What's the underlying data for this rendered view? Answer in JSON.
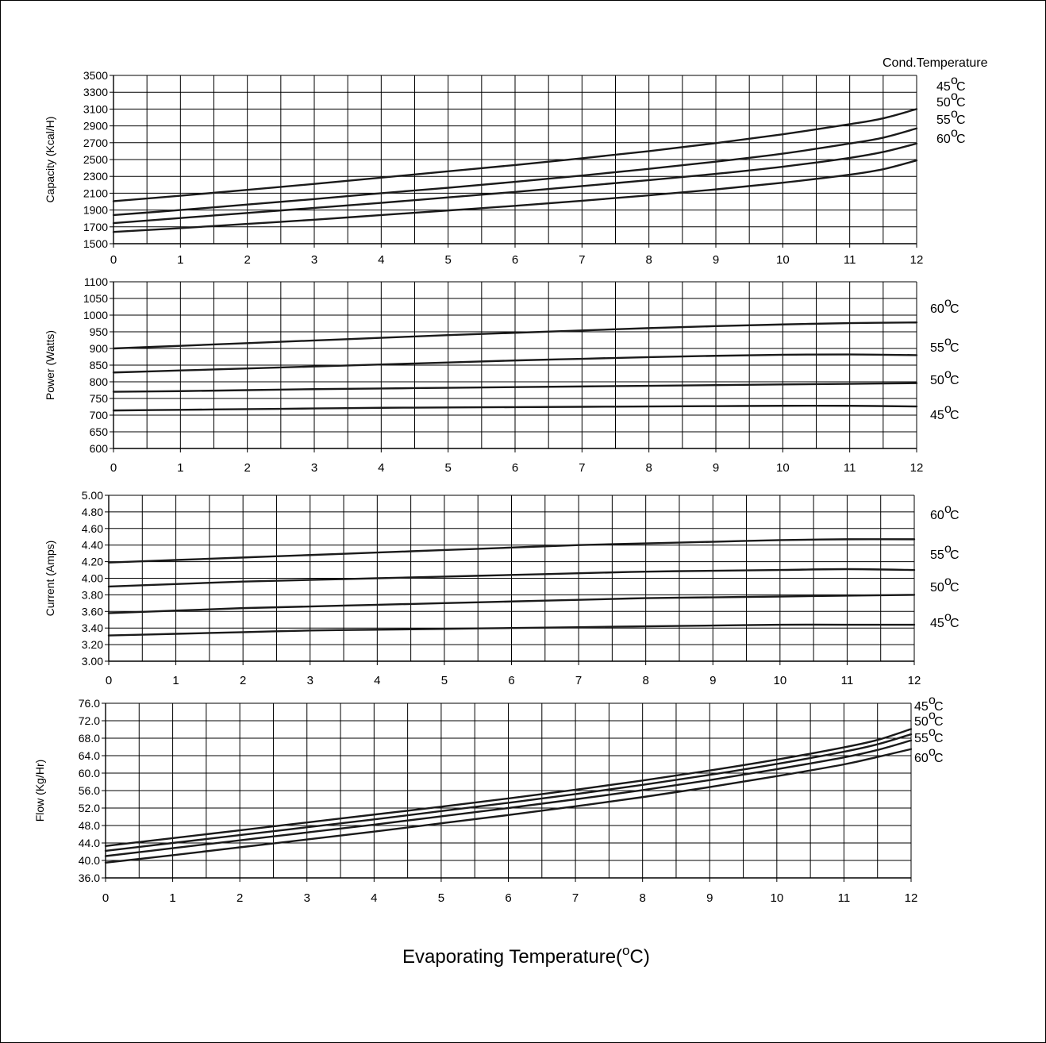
{
  "xlabel_prefix": "Evaporating Temperature(",
  "xlabel_degree": "o",
  "xlabel_suffix": "C)",
  "legend_title": "Cond.Temperature",
  "degree_mark": "o",
  "chart_data": [
    {
      "type": "line",
      "ylabel": "Capacity (Kcal/H)",
      "xlim": [
        0,
        12
      ],
      "ylim": [
        1500,
        3500
      ],
      "x_ticks": [
        "0",
        "1",
        "2",
        "3",
        "4",
        "5",
        "6",
        "7",
        "8",
        "9",
        "10",
        "11",
        "12"
      ],
      "y_ticks": [
        "1500",
        "1700",
        "1900",
        "2100",
        "2300",
        "2500",
        "2700",
        "2900",
        "3100",
        "3300",
        "3500"
      ],
      "grid": true,
      "x": [
        0,
        1,
        2,
        3,
        4,
        5,
        6,
        7,
        8,
        9,
        10,
        11,
        11.5,
        12
      ],
      "series": [
        {
          "name": "45",
          "values": [
            2005,
            2070,
            2140,
            2210,
            2285,
            2360,
            2435,
            2515,
            2600,
            2695,
            2800,
            2920,
            2990,
            3100
          ]
        },
        {
          "name": "50",
          "values": [
            1840,
            1900,
            1965,
            2030,
            2100,
            2165,
            2235,
            2310,
            2390,
            2475,
            2570,
            2690,
            2760,
            2870
          ]
        },
        {
          "name": "55",
          "values": [
            1745,
            1805,
            1865,
            1925,
            1985,
            2050,
            2115,
            2185,
            2255,
            2330,
            2415,
            2520,
            2590,
            2690
          ]
        },
        {
          "name": "60",
          "values": [
            1640,
            1685,
            1735,
            1785,
            1840,
            1895,
            1950,
            2010,
            2075,
            2145,
            2225,
            2320,
            2385,
            2490
          ]
        }
      ],
      "legend": [
        "45",
        "50",
        "55",
        "60"
      ],
      "legend_unit": "C"
    },
    {
      "type": "line",
      "ylabel": "Power (Watts)",
      "xlim": [
        0,
        12
      ],
      "ylim": [
        600,
        1100
      ],
      "x_ticks": [
        "0",
        "1",
        "2",
        "3",
        "4",
        "5",
        "6",
        "7",
        "8",
        "9",
        "10",
        "11",
        "12"
      ],
      "y_ticks": [
        "600",
        "650",
        "700",
        "750",
        "800",
        "850",
        "900",
        "950",
        "1000",
        "1050",
        "1100"
      ],
      "grid": true,
      "x": [
        0,
        1,
        2,
        3,
        4,
        5,
        6,
        7,
        8,
        9,
        10,
        11,
        12
      ],
      "series": [
        {
          "name": "60",
          "values": [
            900,
            908,
            916,
            924,
            932,
            940,
            947,
            954,
            961,
            967,
            972,
            976,
            978
          ]
        },
        {
          "name": "55",
          "values": [
            828,
            834,
            840,
            846,
            852,
            858,
            864,
            869,
            874,
            878,
            881,
            882,
            880
          ]
        },
        {
          "name": "50",
          "values": [
            770,
            772,
            775,
            778,
            780,
            782,
            784,
            786,
            788,
            790,
            792,
            794,
            796
          ]
        },
        {
          "name": "45",
          "values": [
            714,
            716,
            718,
            720,
            722,
            723,
            724,
            725,
            726,
            727,
            728,
            728,
            726
          ]
        }
      ],
      "legend": [
        "60",
        "55",
        "50",
        "45"
      ],
      "legend_unit": "C"
    },
    {
      "type": "line",
      "ylabel": "Current (Amps)",
      "xlim": [
        0,
        12
      ],
      "ylim": [
        3.0,
        5.0
      ],
      "x_ticks": [
        "0",
        "1",
        "2",
        "3",
        "4",
        "5",
        "6",
        "7",
        "8",
        "9",
        "10",
        "11",
        "12"
      ],
      "y_ticks": [
        "3.00",
        "3.20",
        "3.40",
        "3.60",
        "3.80",
        "4.00",
        "4.20",
        "4.40",
        "4.60",
        "4.80",
        "5.00"
      ],
      "grid": true,
      "x": [
        0,
        1,
        2,
        3,
        4,
        5,
        6,
        7,
        8,
        9,
        10,
        11,
        12
      ],
      "series": [
        {
          "name": "60",
          "values": [
            4.19,
            4.22,
            4.25,
            4.28,
            4.31,
            4.34,
            4.37,
            4.4,
            4.42,
            4.44,
            4.46,
            4.47,
            4.47
          ]
        },
        {
          "name": "55",
          "values": [
            3.9,
            3.93,
            3.96,
            3.98,
            4.0,
            4.02,
            4.04,
            4.06,
            4.08,
            4.09,
            4.1,
            4.11,
            4.1
          ]
        },
        {
          "name": "50",
          "values": [
            3.58,
            3.61,
            3.64,
            3.66,
            3.68,
            3.7,
            3.72,
            3.74,
            3.76,
            3.77,
            3.78,
            3.79,
            3.8
          ]
        },
        {
          "name": "45",
          "values": [
            3.31,
            3.33,
            3.35,
            3.37,
            3.38,
            3.39,
            3.4,
            3.41,
            3.42,
            3.43,
            3.44,
            3.44,
            3.44
          ]
        }
      ],
      "legend": [
        "60",
        "55",
        "50",
        "45"
      ],
      "legend_unit": "C"
    },
    {
      "type": "line",
      "ylabel": "Flow (Kg/Hr)",
      "xlim": [
        0,
        12
      ],
      "ylim": [
        36,
        76
      ],
      "x_ticks": [
        "0",
        "1",
        "2",
        "3",
        "4",
        "5",
        "6",
        "7",
        "8",
        "9",
        "10",
        "11",
        "12"
      ],
      "y_ticks": [
        "36.0",
        "40.0",
        "44.0",
        "48.0",
        "52.0",
        "56.0",
        "60.0",
        "64.0",
        "68.0",
        "72.0",
        "76.0"
      ],
      "grid": true,
      "x": [
        0,
        1,
        2,
        3,
        4,
        5,
        6,
        7,
        8,
        9,
        10,
        11,
        11.5,
        12
      ],
      "series": [
        {
          "name": "45",
          "values": [
            43.3,
            45.1,
            46.9,
            48.7,
            50.5,
            52.3,
            54.2,
            56.2,
            58.3,
            60.6,
            63.1,
            65.9,
            67.6,
            70.1
          ]
        },
        {
          "name": "50",
          "values": [
            42.2,
            44.0,
            45.8,
            47.6,
            49.4,
            51.3,
            53.2,
            55.2,
            57.3,
            59.6,
            62.1,
            64.9,
            66.6,
            68.9
          ]
        },
        {
          "name": "55",
          "values": [
            41.0,
            42.8,
            44.6,
            46.4,
            48.2,
            50.1,
            52.0,
            54.0,
            56.1,
            58.4,
            60.9,
            63.6,
            65.3,
            67.5
          ]
        },
        {
          "name": "60",
          "values": [
            39.5,
            41.2,
            43.0,
            44.8,
            46.6,
            48.5,
            50.4,
            52.4,
            54.5,
            56.8,
            59.3,
            62.0,
            63.7,
            65.5
          ]
        }
      ],
      "legend": [
        "45",
        "50",
        "55",
        "60"
      ],
      "legend_unit": "C"
    }
  ]
}
